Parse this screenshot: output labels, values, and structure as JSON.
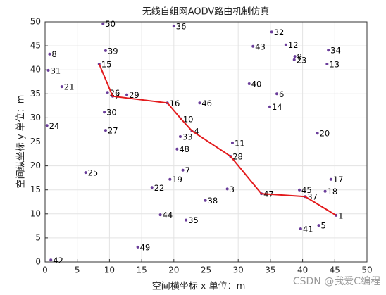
{
  "chart_data": {
    "type": "scatter",
    "title": "无线自组网AODV路由机制仿真",
    "x_label": "空间横坐标 x  单位：m",
    "y_label": "空间纵坐标 y  单位：m",
    "watermark": "CSDN @我爱C编程",
    "xlim": [
      0,
      50
    ],
    "ylim": [
      0,
      50
    ],
    "xticks": [
      0,
      5,
      10,
      15,
      20,
      25,
      30,
      35,
      40,
      45,
      50
    ],
    "yticks": [
      0,
      5,
      10,
      15,
      20,
      25,
      30,
      35,
      40,
      45,
      50
    ],
    "grid": true,
    "series": [
      {
        "color": "#6a3d9a",
        "labels": [
          "1",
          "2",
          "3",
          "4",
          "5",
          "6",
          "7",
          "8",
          "9",
          "10",
          "11",
          "12",
          "13",
          "14",
          "15",
          "16",
          "17",
          "18",
          "19",
          "20",
          "21",
          "22",
          "23",
          "24",
          "25",
          "26",
          "27",
          "28",
          "29",
          "30",
          "31",
          "32",
          "33",
          "34",
          "35",
          "36",
          "37",
          "38",
          "39",
          "40",
          "41",
          "42",
          "43",
          "44",
          "45",
          "46",
          "47",
          "48",
          "49",
          "50"
        ],
        "x": [
          45.2,
          10.5,
          28.3,
          22.8,
          42.5,
          36.0,
          21.4,
          0.7,
          38.8,
          21.1,
          29.1,
          37.4,
          43.8,
          34.9,
          8.4,
          19.0,
          44.4,
          43.5,
          19.4,
          42.3,
          2.6,
          16.6,
          38.7,
          0.3,
          6.3,
          9.7,
          9.4,
          28.8,
          12.7,
          9.2,
          0.5,
          35.2,
          21.0,
          44.0,
          21.9,
          20.0,
          40.4,
          24.9,
          9.4,
          31.7,
          39.7,
          0.9,
          32.3,
          17.9,
          39.5,
          24.0,
          33.6,
          20.5,
          14.4,
          9.0
        ],
        "values": [
          9.7,
          34.5,
          15.2,
          27.3,
          7.6,
          35.0,
          19.1,
          43.3,
          42.8,
          29.8,
          24.8,
          45.2,
          41.2,
          32.3,
          41.2,
          33.1,
          17.2,
          14.7,
          17.2,
          26.8,
          36.5,
          15.5,
          42.1,
          28.4,
          18.6,
          35.3,
          27.4,
          22.0,
          34.8,
          31.2,
          39.9,
          47.9,
          26.1,
          44.1,
          8.7,
          49.1,
          13.6,
          12.8,
          44.0,
          37.1,
          6.9,
          0.4,
          44.9,
          9.8,
          15.0,
          33.1,
          14.2,
          23.5,
          3.1,
          49.6
        ]
      },
      {
        "type": "line",
        "color": "#e31a1c",
        "x": [
          8.4,
          10.5,
          19.0,
          21.1,
          22.8,
          28.8,
          33.6,
          40.4,
          45.2
        ],
        "values": [
          41.2,
          34.5,
          33.1,
          29.8,
          27.3,
          22.0,
          14.2,
          13.6,
          9.7
        ]
      }
    ]
  }
}
